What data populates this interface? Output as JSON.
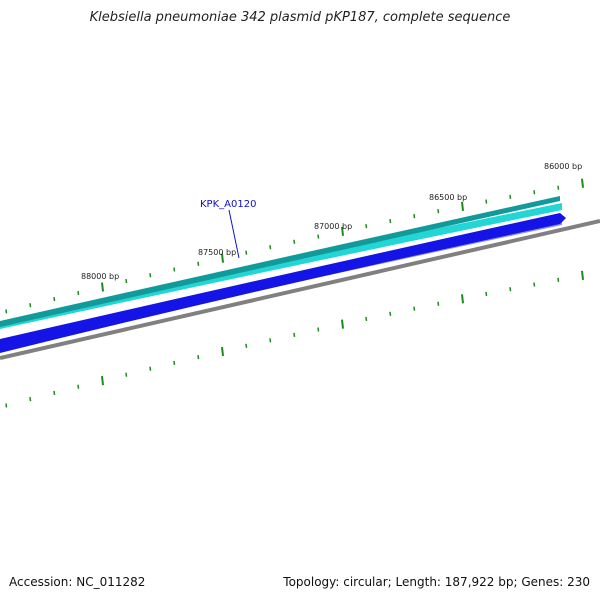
{
  "header": {
    "title": "Klebsiella pneumoniae 342 plasmid pKP187, complete sequence"
  },
  "footer": {
    "accession": "Accession: NC_011282",
    "summary": "Topology: circular; Length: 187,922 bp; Genes: 230"
  },
  "map": {
    "colors": {
      "forward_strand_dark": "#129a9a",
      "forward_strand_light": "#22d6d6",
      "reverse_strand": "#1414e6",
      "reverse_strand_light": "#8c8cf5",
      "backbone": "#808080",
      "ticks": "#1d8a1d",
      "gene_label": "#1010c8"
    },
    "scale_labels": [
      {
        "bp": 86000,
        "text": "86000 bp"
      },
      {
        "bp": 86500,
        "text": "86500 bp"
      },
      {
        "bp": 87000,
        "text": "87000 bp"
      },
      {
        "bp": 87500,
        "text": "87500 bp"
      },
      {
        "bp": 88000,
        "text": "88000 bp"
      }
    ],
    "gene_labels": [
      {
        "text": "KPK_A0120"
      }
    ]
  }
}
